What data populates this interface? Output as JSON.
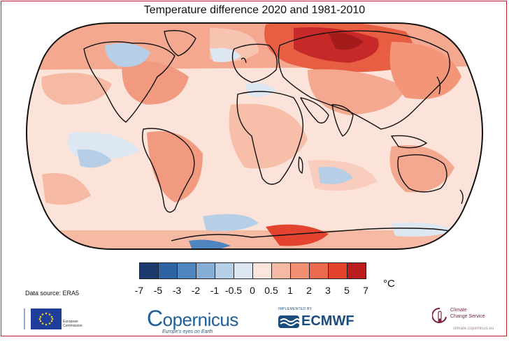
{
  "title": "Temperature difference 2020 and 1981-2010",
  "map": {
    "projection": "Robinson (world)",
    "variable": "surface air temperature anomaly"
  },
  "colorbar": {
    "unit": "°C",
    "ticks": [
      "-7",
      "-5",
      "-3",
      "-2",
      "-1",
      "-0.5",
      "0",
      "0.5",
      "1",
      "2",
      "3",
      "5",
      "7"
    ],
    "colors": [
      "#1d3a6e",
      "#2e63a3",
      "#4f86bf",
      "#86add4",
      "#b6cfe6",
      "#dde7f1",
      "#fbe6de",
      "#f6b9a3",
      "#f18f73",
      "#ec6b4f",
      "#e4442f",
      "#b91d1d"
    ]
  },
  "source": "Data source: ERA5",
  "logos": {
    "eu": {
      "line1": "European",
      "line2": "Commission"
    },
    "copernicus": {
      "name": "opernicus",
      "initial": "C",
      "tagline": "Europe's eyes on Earth"
    },
    "ecmwf": {
      "implemented_by": "IMPLEMENTED BY",
      "name": "ECMWF"
    },
    "c3s": {
      "line1": "Climate",
      "line2": "Change Service",
      "url": "climate.copernicus.eu"
    }
  }
}
